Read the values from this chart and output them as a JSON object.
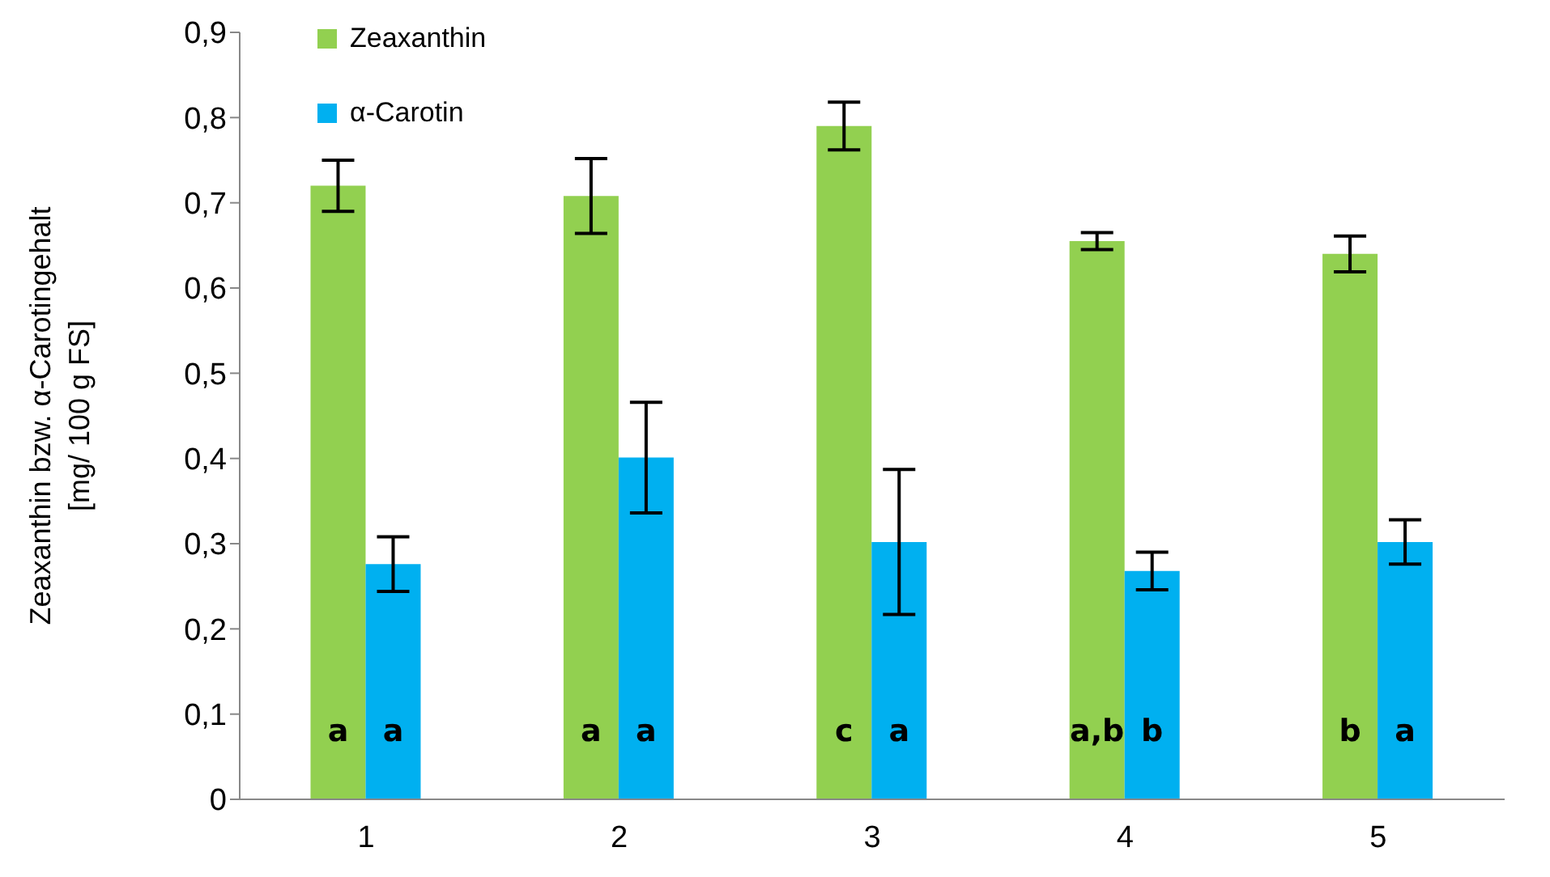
{
  "chart_data": {
    "type": "bar",
    "ylabel": "Zeaxanthin bzw. α-Carotingehalt\n[mg/ 100 g FS]",
    "categories": [
      "1",
      "2",
      "3",
      "4",
      "5"
    ],
    "series": [
      {
        "name": "Zeaxanthin",
        "color": "#92d050",
        "values": [
          0.72,
          0.708,
          0.79,
          0.655,
          0.64
        ],
        "errors": [
          0.03,
          0.044,
          0.028,
          0.01,
          0.021
        ],
        "value_labels": [
          "a",
          "a",
          "c",
          "a,b",
          "b"
        ]
      },
      {
        "name": "α-Carotin",
        "color": "#00b0f0",
        "values": [
          0.276,
          0.401,
          0.302,
          0.268,
          0.302
        ],
        "errors": [
          0.032,
          0.065,
          0.085,
          0.022,
          0.026
        ],
        "value_labels": [
          "a",
          "a",
          "a",
          "b",
          "a"
        ]
      }
    ],
    "ylim": [
      0,
      0.9
    ],
    "yticks": [
      0,
      {
        "value": 0.1,
        "label": "0,1"
      },
      {
        "value": 0.2,
        "label": "0,2"
      },
      {
        "value": 0.3,
        "label": "0,3"
      },
      {
        "value": 0.4,
        "label": "0,4"
      },
      {
        "value": 0.5,
        "label": "0,5"
      },
      {
        "value": 0.6,
        "label": "0,6"
      },
      {
        "value": 0.7,
        "label": "0,7"
      },
      {
        "value": 0.8,
        "label": "0,8"
      },
      {
        "value": 0.9,
        "label": "0,9"
      }
    ],
    "grid": false,
    "legend": "top left"
  }
}
